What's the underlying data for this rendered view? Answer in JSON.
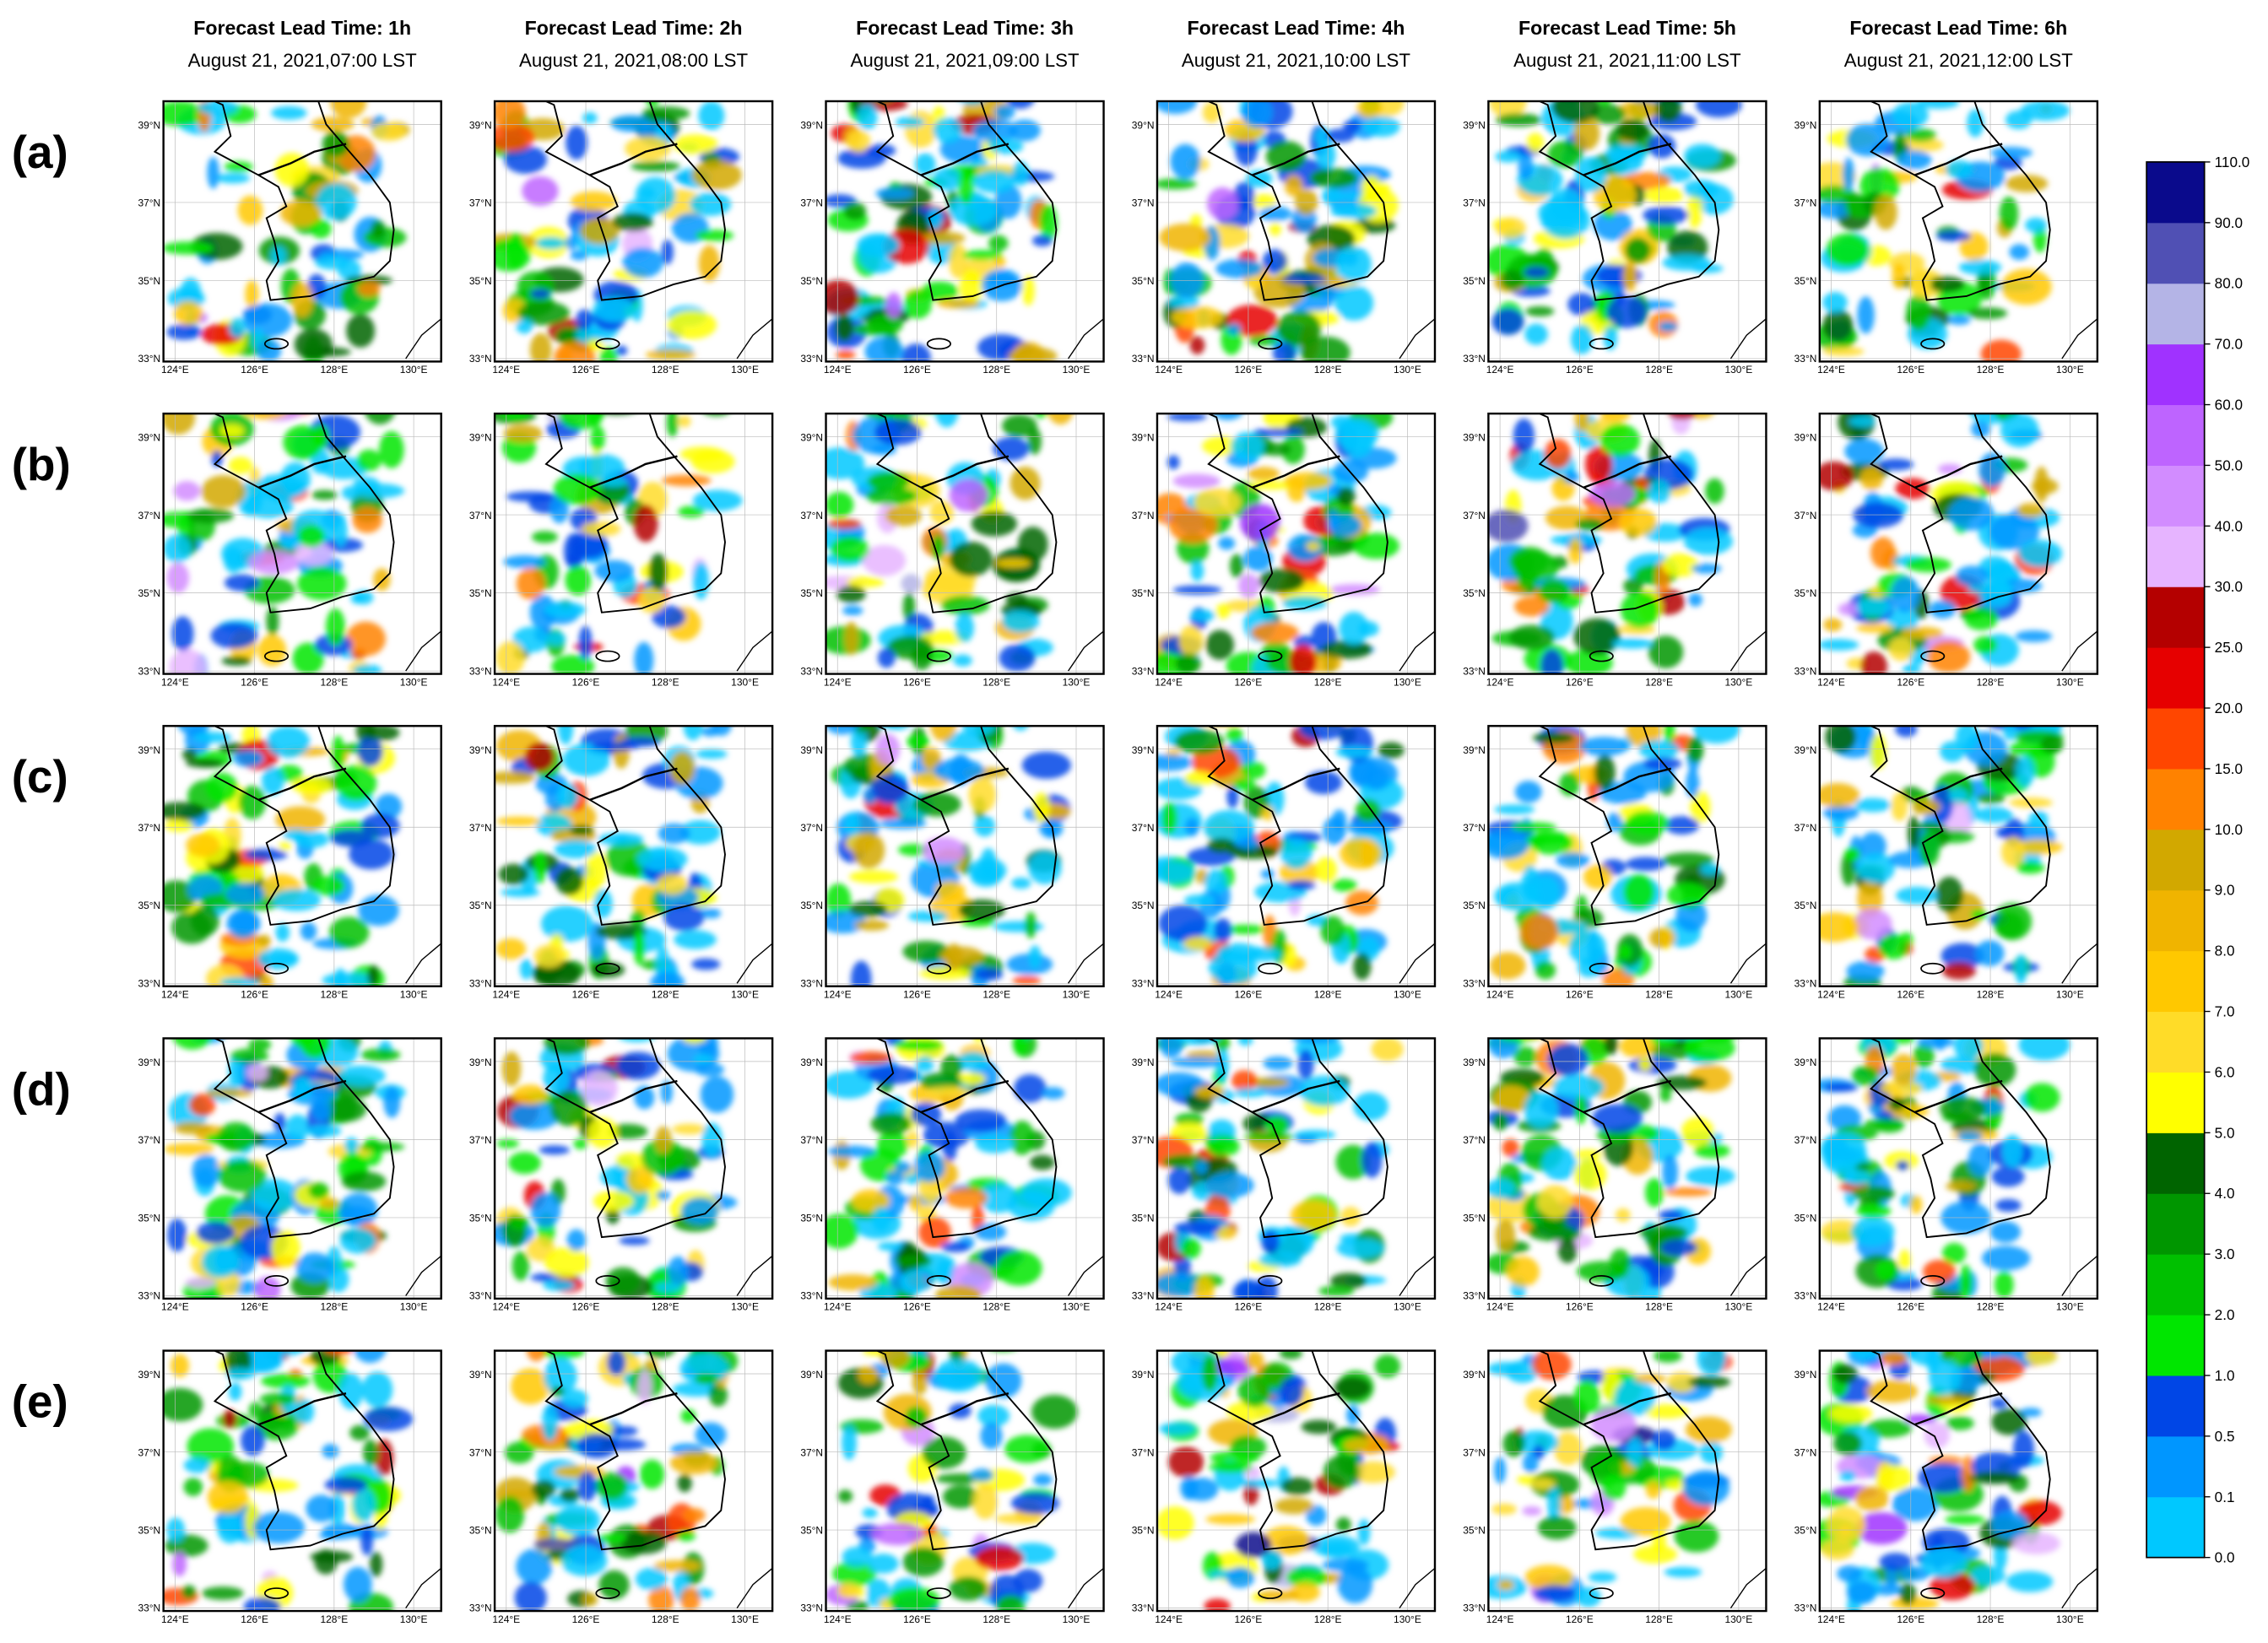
{
  "columns": [
    {
      "title": "Forecast Lead Time: 1h",
      "subtitle": "August 21, 2021,07:00 LST"
    },
    {
      "title": "Forecast Lead Time: 2h",
      "subtitle": "August 21, 2021,08:00 LST"
    },
    {
      "title": "Forecast Lead Time: 3h",
      "subtitle": "August 21, 2021,09:00 LST"
    },
    {
      "title": "Forecast Lead Time: 4h",
      "subtitle": "August 21, 2021,10:00 LST"
    },
    {
      "title": "Forecast Lead Time: 5h",
      "subtitle": "August 21, 2021,11:00 LST"
    },
    {
      "title": "Forecast Lead Time: 6h",
      "subtitle": "August 21, 2021,12:00 LST"
    }
  ],
  "rows": [
    "(a)",
    "(b)",
    "(c)",
    "(d)",
    "(e)"
  ],
  "lat_ticks": [
    "39°N",
    "37°N",
    "35°N",
    "33°N"
  ],
  "lon_ticks": [
    "124°E",
    "126°E",
    "128°E",
    "130°E"
  ],
  "colorbar": {
    "labels": [
      "0.0",
      "0.1",
      "0.5",
      "1.0",
      "2.0",
      "3.0",
      "4.0",
      "5.0",
      "6.0",
      "7.0",
      "8.0",
      "9.0",
      "10.0",
      "15.0",
      "20.0",
      "25.0",
      "30.0",
      "40.0",
      "50.0",
      "60.0",
      "70.0",
      "80.0",
      "90.0",
      "110.0"
    ],
    "colors": [
      "#00c8ff",
      "#0096ff",
      "#0046e6",
      "#00e600",
      "#00c000",
      "#009600",
      "#006400",
      "#ffff00",
      "#ffdc28",
      "#ffc800",
      "#f0b400",
      "#d2a800",
      "#ff8200",
      "#ff4600",
      "#e60000",
      "#b40000",
      "#e6b4ff",
      "#d28cff",
      "#be64ff",
      "#a032ff",
      "#b4b4e6",
      "#5050b4",
      "#0a0a8c"
    ]
  }
}
